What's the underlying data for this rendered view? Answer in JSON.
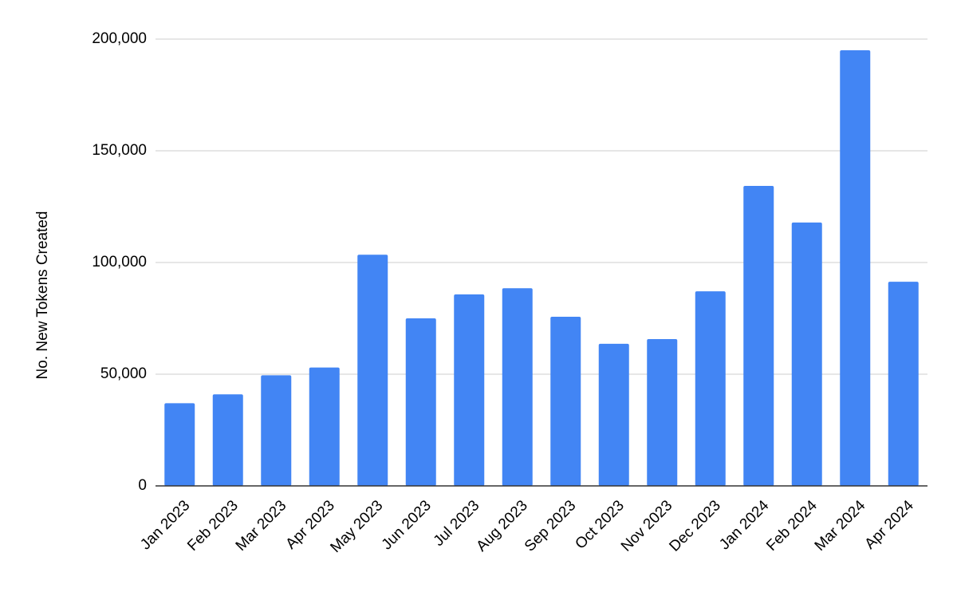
{
  "chart_data": {
    "type": "bar",
    "y_label": "No. New Tokens Created",
    "categories": [
      "Jan 2023",
      "Feb 2023",
      "Mar 2023",
      "Apr 2023",
      "May 2023",
      "Jun 2023",
      "Jul 2023",
      "Aug 2023",
      "Sep 2023",
      "Oct 2023",
      "Nov 2023",
      "Dec 2023",
      "Jan 2024",
      "Feb 2024",
      "Mar 2024",
      "Apr 2024"
    ],
    "values": [
      37000,
      41000,
      49500,
      53000,
      103500,
      75000,
      85700,
      88500,
      75700,
      63600,
      65700,
      87100,
      134300,
      117900,
      195000,
      91400
    ],
    "color": "#4285f4",
    "ylim": [
      0,
      200000
    ],
    "yticks": [
      0,
      {
        "value": 50000,
        "label": "50,000"
      },
      {
        "value": 100000,
        "label": "100,000"
      },
      {
        "value": 150000,
        "label": "150,000"
      },
      {
        "value": 200000,
        "label": "200,000"
      }
    ],
    "grid": true
  }
}
